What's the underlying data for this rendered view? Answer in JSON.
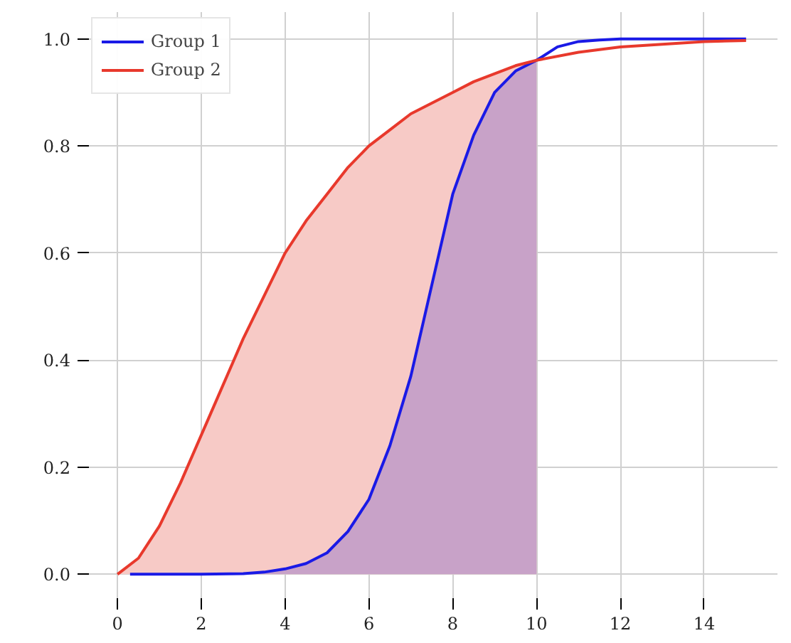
{
  "chart_data": {
    "type": "line",
    "xlim": [
      -0.75,
      15.75
    ],
    "ylim": [
      -0.05,
      1.05
    ],
    "xticks": [
      0,
      2,
      4,
      6,
      8,
      10,
      12,
      14
    ],
    "yticks": [
      {
        "value": 0,
        "label": "0.0"
      },
      {
        "value": 0.2,
        "label": "0.2"
      },
      {
        "value": 0.4,
        "label": "0.4"
      },
      {
        "value": 0.6,
        "label": "0.6"
      },
      {
        "value": 0.8,
        "label": "0.8"
      },
      {
        "value": 1,
        "label": "1.0"
      }
    ],
    "grid": true,
    "legend": "top left",
    "series": [
      {
        "type": "area",
        "color": "#f7cac6",
        "x": [
          0,
          0.5,
          1,
          1.5,
          2,
          2.5,
          3,
          3.5,
          4,
          4.5,
          5,
          5.5,
          6,
          6.5,
          7,
          7.5,
          8,
          8.5,
          9,
          9.5,
          10
        ],
        "values": [
          0,
          0.03,
          0.09,
          0.17,
          0.26,
          0.35,
          0.44,
          0.52,
          0.6,
          0.66,
          0.71,
          0.76,
          0.8,
          0.83,
          0.86,
          0.88,
          0.9,
          0.92,
          0.935,
          0.95,
          0.96
        ]
      },
      {
        "type": "area",
        "color": "#c8a2c8",
        "x": [
          0.3,
          1,
          2,
          3,
          3.5,
          4,
          4.5,
          5,
          5.5,
          6,
          6.5,
          7,
          7.5,
          8,
          8.5,
          9,
          9.5,
          10
        ],
        "values": [
          0,
          0,
          0,
          0.001,
          0.004,
          0.01,
          0.02,
          0.04,
          0.08,
          0.14,
          0.24,
          0.37,
          0.54,
          0.71,
          0.82,
          0.9,
          0.94,
          0.96
        ]
      },
      {
        "name": "Group 1",
        "color": "#1a1ae6",
        "x": [
          0.3,
          1,
          2,
          3,
          3.5,
          4,
          4.5,
          5,
          5.5,
          6,
          6.5,
          7,
          7.5,
          8,
          8.5,
          9,
          9.5,
          10,
          10.5,
          11,
          11.5,
          12,
          13,
          14,
          15
        ],
        "values": [
          0,
          0,
          0,
          0.001,
          0.004,
          0.01,
          0.02,
          0.04,
          0.08,
          0.14,
          0.24,
          0.37,
          0.54,
          0.71,
          0.82,
          0.9,
          0.94,
          0.96,
          0.985,
          0.995,
          0.998,
          1,
          1,
          1,
          1
        ]
      },
      {
        "name": "Group 2",
        "color": "#e8392c",
        "x": [
          0,
          0.5,
          1,
          1.5,
          2,
          2.5,
          3,
          3.5,
          4,
          4.5,
          5,
          5.5,
          6,
          6.5,
          7,
          7.5,
          8,
          8.5,
          9,
          9.5,
          10,
          11,
          12,
          13,
          14,
          15
        ],
        "values": [
          0,
          0.03,
          0.09,
          0.17,
          0.26,
          0.35,
          0.44,
          0.52,
          0.6,
          0.66,
          0.71,
          0.76,
          0.8,
          0.83,
          0.86,
          0.88,
          0.9,
          0.92,
          0.935,
          0.95,
          0.96,
          0.975,
          0.985,
          0.99,
          0.995,
          0.997
        ]
      }
    ]
  }
}
